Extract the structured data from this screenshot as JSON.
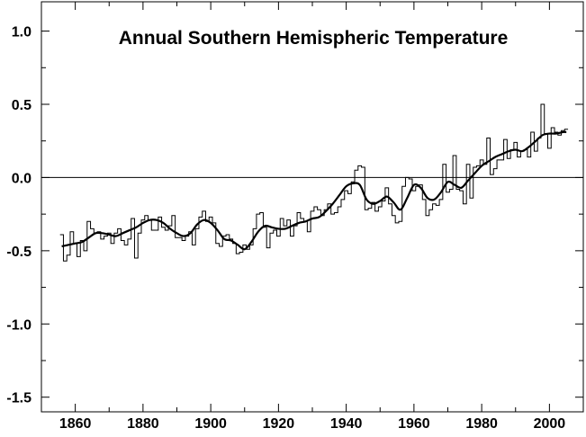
{
  "chart_data": {
    "type": "line",
    "title": "Annual Southern Hemispheric Temperature",
    "xlabel": "",
    "ylabel": "",
    "xlim": [
      1850,
      2010
    ],
    "ylim": [
      -1.6,
      1.2
    ],
    "x_ticks": [
      1860,
      1880,
      1900,
      1920,
      1940,
      1960,
      1980,
      2000
    ],
    "x_tick_labels": [
      "1860",
      "1880",
      "1900",
      "1920",
      "1940",
      "1960",
      "1980",
      "2000"
    ],
    "y_ticks": [
      1.0,
      0.5,
      0.0,
      -0.5,
      -1.0,
      -1.5
    ],
    "y_tick_labels": [
      "1.0",
      "0.5",
      "0.0",
      "-0.5",
      "-1.0",
      "-1.5"
    ],
    "reference_line": 0.0,
    "grid": false,
    "series": [
      {
        "style": "step",
        "x": [
          1856,
          1857,
          1858,
          1859,
          1860,
          1861,
          1862,
          1863,
          1864,
          1865,
          1866,
          1867,
          1868,
          1869,
          1870,
          1871,
          1872,
          1873,
          1874,
          1875,
          1876,
          1877,
          1878,
          1879,
          1880,
          1881,
          1882,
          1883,
          1884,
          1885,
          1886,
          1887,
          1888,
          1889,
          1890,
          1891,
          1892,
          1893,
          1894,
          1895,
          1896,
          1897,
          1898,
          1899,
          1900,
          1901,
          1902,
          1903,
          1904,
          1905,
          1906,
          1907,
          1908,
          1909,
          1910,
          1911,
          1912,
          1913,
          1914,
          1915,
          1916,
          1917,
          1918,
          1919,
          1920,
          1921,
          1922,
          1923,
          1924,
          1925,
          1926,
          1927,
          1928,
          1929,
          1930,
          1931,
          1932,
          1933,
          1934,
          1935,
          1936,
          1937,
          1938,
          1939,
          1940,
          1941,
          1942,
          1943,
          1944,
          1945,
          1946,
          1947,
          1948,
          1949,
          1950,
          1951,
          1952,
          1953,
          1954,
          1955,
          1956,
          1957,
          1958,
          1959,
          1960,
          1961,
          1962,
          1963,
          1964,
          1965,
          1966,
          1967,
          1968,
          1969,
          1970,
          1971,
          1972,
          1973,
          1974,
          1975,
          1976,
          1977,
          1978,
          1979,
          1980,
          1981,
          1982,
          1983,
          1984,
          1985,
          1986,
          1987,
          1988,
          1989,
          1990,
          1991,
          1992,
          1993,
          1994,
          1995,
          1996,
          1997,
          1998,
          1999,
          2000,
          2001,
          2002,
          2003,
          2004,
          2005
        ],
        "values": [
          -0.39,
          -0.57,
          -0.53,
          -0.37,
          -0.45,
          -0.54,
          -0.43,
          -0.5,
          -0.3,
          -0.35,
          -0.38,
          -0.37,
          -0.42,
          -0.4,
          -0.38,
          -0.45,
          -0.38,
          -0.35,
          -0.43,
          -0.46,
          -0.42,
          -0.28,
          -0.55,
          -0.38,
          -0.29,
          -0.26,
          -0.29,
          -0.36,
          -0.36,
          -0.27,
          -0.34,
          -0.36,
          -0.33,
          -0.26,
          -0.41,
          -0.41,
          -0.43,
          -0.4,
          -0.37,
          -0.46,
          -0.35,
          -0.27,
          -0.23,
          -0.3,
          -0.27,
          -0.31,
          -0.45,
          -0.47,
          -0.4,
          -0.39,
          -0.42,
          -0.45,
          -0.52,
          -0.51,
          -0.46,
          -0.49,
          -0.46,
          -0.35,
          -0.25,
          -0.24,
          -0.34,
          -0.48,
          -0.38,
          -0.36,
          -0.4,
          -0.28,
          -0.33,
          -0.29,
          -0.4,
          -0.33,
          -0.24,
          -0.28,
          -0.3,
          -0.37,
          -0.23,
          -0.2,
          -0.22,
          -0.26,
          -0.22,
          -0.18,
          -0.25,
          -0.24,
          -0.2,
          -0.15,
          -0.09,
          -0.11,
          -0.03,
          0.05,
          0.08,
          0.07,
          -0.22,
          -0.21,
          -0.17,
          -0.23,
          -0.2,
          -0.16,
          -0.07,
          -0.18,
          -0.26,
          -0.31,
          -0.3,
          -0.06,
          0.0,
          -0.01,
          -0.09,
          -0.06,
          -0.05,
          -0.15,
          -0.26,
          -0.22,
          -0.18,
          -0.19,
          -0.15,
          0.09,
          -0.1,
          -0.08,
          0.15,
          -0.08,
          -0.09,
          -0.18,
          0.09,
          -0.14,
          0.07,
          0.08,
          0.12,
          0.09,
          0.27,
          0.02,
          0.06,
          0.12,
          0.12,
          0.26,
          0.13,
          0.19,
          0.24,
          0.14,
          0.18,
          0.19,
          0.14,
          0.31,
          0.18,
          0.27,
          0.5,
          0.3,
          0.2,
          0.34,
          0.31,
          0.29,
          0.32,
          0.33
        ]
      },
      {
        "style": "smooth",
        "x": [
          1856,
          1858,
          1860,
          1862,
          1864,
          1866,
          1868,
          1870,
          1872,
          1874,
          1876,
          1878,
          1880,
          1882,
          1884,
          1886,
          1888,
          1890,
          1892,
          1894,
          1896,
          1898,
          1900,
          1902,
          1904,
          1906,
          1908,
          1910,
          1912,
          1914,
          1916,
          1918,
          1920,
          1922,
          1924,
          1926,
          1928,
          1930,
          1932,
          1934,
          1936,
          1938,
          1940,
          1942,
          1944,
          1946,
          1948,
          1950,
          1952,
          1954,
          1956,
          1958,
          1960,
          1962,
          1964,
          1966,
          1968,
          1970,
          1972,
          1974,
          1976,
          1978,
          1980,
          1982,
          1984,
          1986,
          1988,
          1990,
          1992,
          1994,
          1996,
          1998,
          2000,
          2002,
          2004,
          2005
        ],
        "values": [
          -0.47,
          -0.46,
          -0.45,
          -0.44,
          -0.41,
          -0.38,
          -0.38,
          -0.39,
          -0.4,
          -0.38,
          -0.36,
          -0.34,
          -0.31,
          -0.29,
          -0.29,
          -0.31,
          -0.35,
          -0.38,
          -0.4,
          -0.38,
          -0.32,
          -0.29,
          -0.31,
          -0.36,
          -0.42,
          -0.43,
          -0.46,
          -0.49,
          -0.44,
          -0.37,
          -0.33,
          -0.34,
          -0.35,
          -0.35,
          -0.33,
          -0.31,
          -0.3,
          -0.28,
          -0.27,
          -0.23,
          -0.18,
          -0.12,
          -0.06,
          -0.04,
          -0.05,
          -0.15,
          -0.18,
          -0.16,
          -0.13,
          -0.17,
          -0.22,
          -0.14,
          -0.05,
          -0.07,
          -0.14,
          -0.15,
          -0.1,
          -0.03,
          -0.05,
          -0.07,
          -0.02,
          0.03,
          0.08,
          0.11,
          0.14,
          0.16,
          0.18,
          0.19,
          0.18,
          0.21,
          0.25,
          0.29,
          0.3,
          0.3,
          0.31,
          0.31
        ]
      }
    ]
  }
}
